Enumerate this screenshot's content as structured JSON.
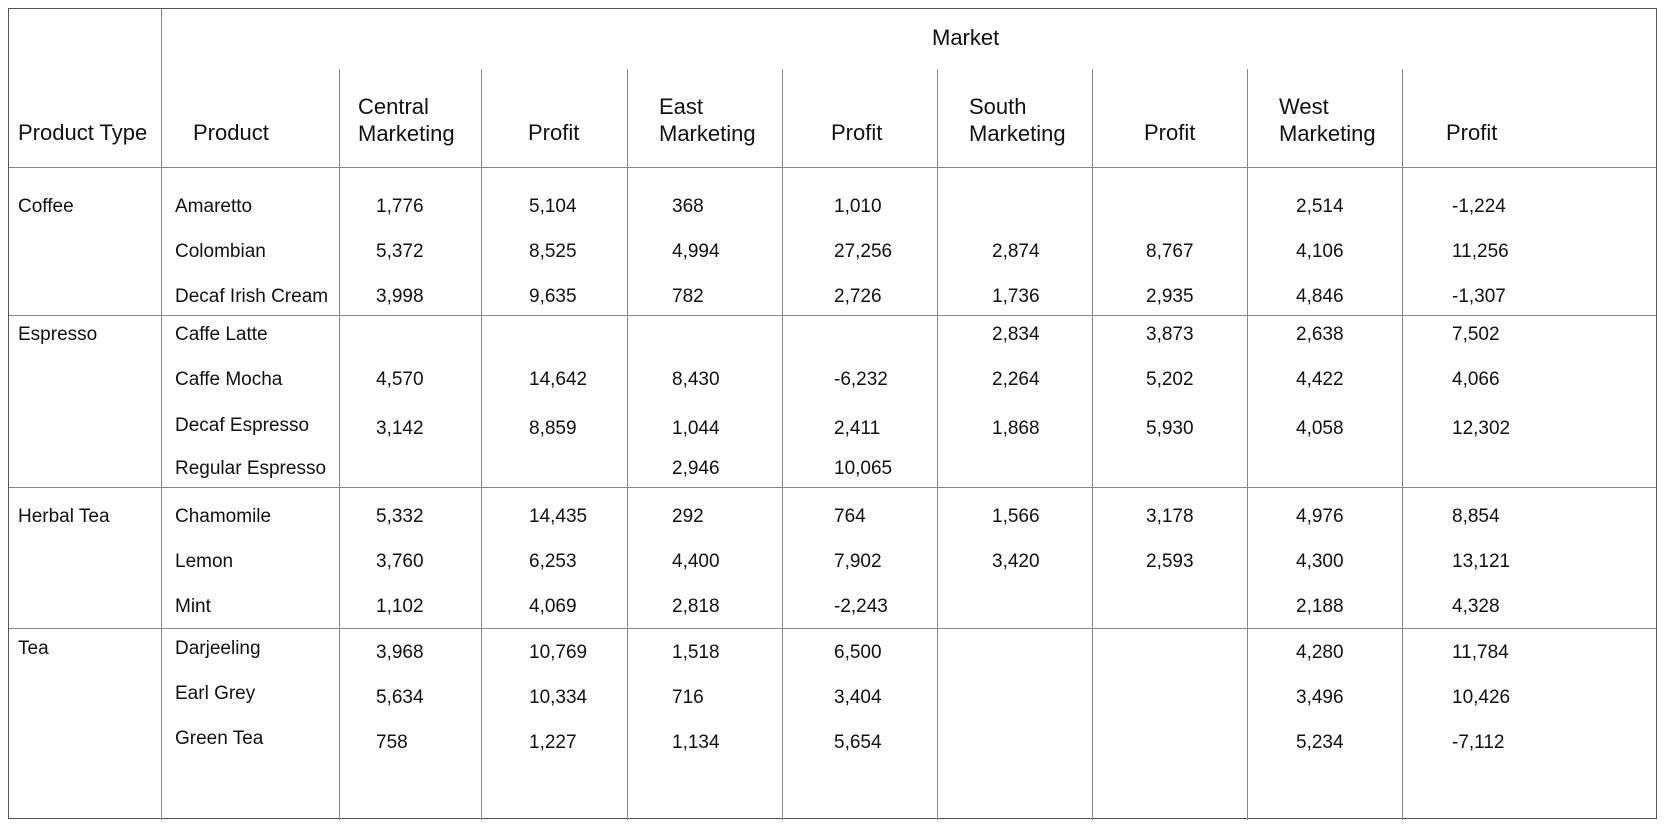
{
  "table": {
    "group_header": "Market",
    "headers": [
      "Product Type",
      "Product",
      "Central\nMarketing",
      "Profit",
      "East\nMarketing",
      "Profit",
      "South\nMarketing",
      "Profit",
      "West\nMarketing",
      "Profit"
    ],
    "groups": [
      {
        "type": "Coffee",
        "rows": [
          {
            "product": "Amaretto",
            "values": [
              "1,776",
              "5,104",
              "368",
              "1,010",
              "",
              "",
              "2,514",
              "-1,224"
            ]
          },
          {
            "product": "Colombian",
            "values": [
              "5,372",
              "8,525",
              "4,994",
              "27,256",
              "2,874",
              "8,767",
              "4,106",
              "11,256"
            ]
          },
          {
            "product": "Decaf Irish Cream",
            "values": [
              "3,998",
              "9,635",
              "782",
              "2,726",
              "1,736",
              "2,935",
              "4,846",
              "-1,307"
            ]
          }
        ]
      },
      {
        "type": "Espresso",
        "rows": [
          {
            "product": "Caffe Latte",
            "values": [
              "",
              "",
              "",
              "",
              "2,834",
              "3,873",
              "2,638",
              "7,502"
            ]
          },
          {
            "product": "Caffe Mocha",
            "values": [
              "4,570",
              "14,642",
              "8,430",
              "-6,232",
              "2,264",
              "5,202",
              "4,422",
              "4,066"
            ]
          },
          {
            "product": "Decaf Espresso",
            "values": [
              "3,142",
              "8,859",
              "1,044",
              "2,411",
              "1,868",
              "5,930",
              "4,058",
              "12,302"
            ]
          },
          {
            "product": "Regular Espresso",
            "values": [
              "",
              "",
              "2,946",
              "10,065",
              "",
              "",
              "",
              ""
            ]
          }
        ]
      },
      {
        "type": "Herbal Tea",
        "rows": [
          {
            "product": "Chamomile",
            "values": [
              "5,332",
              "14,435",
              "292",
              "764",
              "1,566",
              "3,178",
              "4,976",
              "8,854"
            ]
          },
          {
            "product": "Lemon",
            "values": [
              "3,760",
              "6,253",
              "4,400",
              "7,902",
              "3,420",
              "2,593",
              "4,300",
              "13,121"
            ]
          },
          {
            "product": "Mint",
            "values": [
              "1,102",
              "4,069",
              "2,818",
              "-2,243",
              "",
              "",
              "2,188",
              "4,328"
            ]
          }
        ]
      },
      {
        "type": "Tea",
        "rows": [
          {
            "product": "Darjeeling",
            "values": [
              "3,968",
              "10,769",
              "1,518",
              "6,500",
              "",
              "",
              "4,280",
              "11,784"
            ]
          },
          {
            "product": "Earl Grey",
            "values": [
              "5,634",
              "10,334",
              "716",
              "3,404",
              "",
              "",
              "3,496",
              "10,426"
            ]
          },
          {
            "product": "Green Tea",
            "values": [
              "758",
              "1,227",
              "1,134",
              "5,654",
              "",
              "",
              "5,234",
              "-7,112"
            ]
          }
        ]
      }
    ]
  }
}
